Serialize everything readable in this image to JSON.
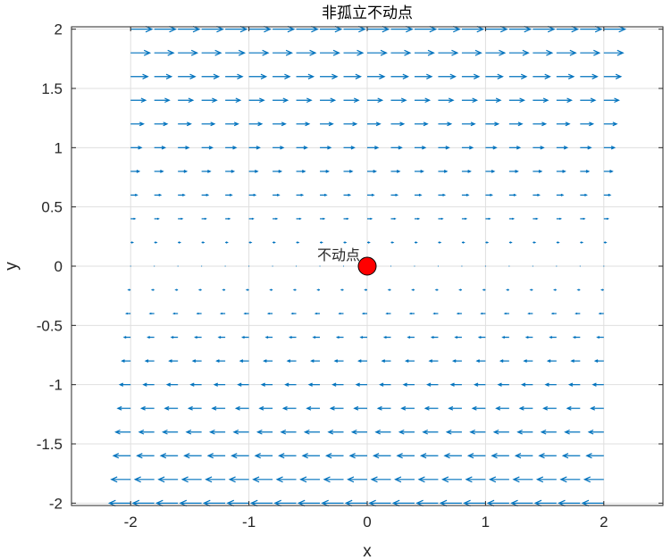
{
  "chart_data": {
    "type": "quiver",
    "title": "非孤立不动点",
    "xlabel": "x",
    "ylabel": "y",
    "xlim": [
      -2.5,
      2.5
    ],
    "ylim": [
      -2.02,
      2.02
    ],
    "xticks": [
      -2,
      -1,
      0,
      1,
      2
    ],
    "xtick_labels": [
      "-2",
      "-1",
      "0",
      "1",
      "2"
    ],
    "yticks": [
      -2,
      -1.5,
      -1,
      -0.5,
      0,
      0.5,
      1,
      1.5,
      2
    ],
    "ytick_labels": [
      "-2",
      "-1.5",
      "-1",
      "-0.5",
      "0",
      "0.5",
      "1",
      "1.5",
      "2"
    ],
    "grid": true,
    "vector_field": {
      "u": "y",
      "v": "0",
      "x_range": [
        -2,
        2
      ],
      "y_range": [
        -2,
        2
      ],
      "grid_count": 21,
      "arrow_color": "#0072BD"
    },
    "point": {
      "x": 0,
      "y": 0,
      "label": "不动点",
      "fill_color": "#FF0000",
      "edge_color": "#000000"
    }
  }
}
